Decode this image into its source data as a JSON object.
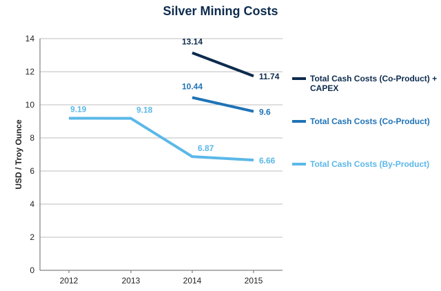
{
  "chart_data": {
    "type": "line",
    "title": "Silver Mining Costs",
    "xlabel": "",
    "ylabel": "USD / Troy Ounce",
    "categories": [
      "2012",
      "2013",
      "2014",
      "2015"
    ],
    "ylim": [
      0,
      14
    ],
    "yticks": [
      0,
      2,
      4,
      6,
      8,
      10,
      12,
      14
    ],
    "grid": true,
    "legend_position": "right",
    "series": [
      {
        "name": "Total Cash Costs (Co-Product) + CAPEX",
        "legend_lines": [
          "Total Cash Costs (Co-Product) +",
          "CAPEX"
        ],
        "color": "#0d2b4e",
        "values": [
          null,
          null,
          13.14,
          11.74
        ],
        "labels": [
          null,
          null,
          "13.14",
          "11.74"
        ]
      },
      {
        "name": "Total Cash Costs (Co-Product)",
        "legend_lines": [
          "Total Cash Costs (Co-Product)"
        ],
        "color": "#1f73b7",
        "values": [
          null,
          null,
          10.44,
          9.6
        ],
        "labels": [
          null,
          null,
          "10.44",
          "9.6"
        ]
      },
      {
        "name": "Total Cash Costs (By-Product)",
        "legend_lines": [
          "Total Cash Costs (By-Product)"
        ],
        "color": "#5bb8e8",
        "values": [
          9.19,
          9.18,
          6.87,
          6.66
        ],
        "labels": [
          "9.19",
          "9.18",
          "6.87",
          "6.66"
        ]
      }
    ]
  }
}
